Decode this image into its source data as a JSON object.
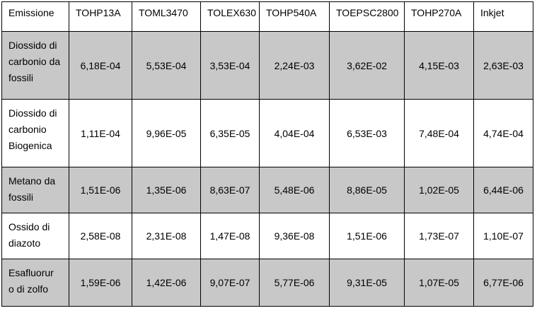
{
  "headers": [
    "Emissione",
    "TOHP13A",
    "TOML3470",
    "TOLEX630",
    "TOHP540A",
    "TOEPSC2800",
    "TOHP270A",
    "Inkjet"
  ],
  "rows": [
    {
      "label": [
        "Diossido di",
        "carbonio da",
        "fossili"
      ],
      "values": [
        "6,18E-04",
        "5,53E-04",
        "3,53E-04",
        "2,24E-03",
        "3,62E-02",
        "4,15E-03",
        "2,63E-03"
      ]
    },
    {
      "label": [
        "Diossido di",
        "carbonio",
        "Biogenica"
      ],
      "values": [
        "1,11E-04",
        "9,96E-05",
        "6,35E-05",
        "4,04E-04",
        "6,53E-03",
        "7,48E-04",
        "4,74E-04"
      ]
    },
    {
      "label": [
        "Metano da",
        "fossili"
      ],
      "values": [
        "1,51E-06",
        "1,35E-06",
        "8,63E-07",
        "5,48E-06",
        "8,86E-05",
        "1,02E-05",
        "6,44E-06"
      ]
    },
    {
      "label": [
        "Ossido di",
        "diazoto"
      ],
      "values": [
        "2,58E-08",
        "2,31E-08",
        "1,47E-08",
        "9,36E-08",
        "1,51E-06",
        "1,73E-07",
        "1,10E-07"
      ]
    },
    {
      "label": [
        "Esafluorur",
        "o di zolfo"
      ],
      "values": [
        "1,59E-06",
        "1,42E-06",
        "9,07E-07",
        "5,77E-06",
        "9,31E-05",
        "1,07E-05",
        "6,77E-06"
      ]
    }
  ],
  "colors": {
    "shaded_row": "#c8c8c8",
    "plain_row": "#ffffff",
    "border": "#000000"
  }
}
